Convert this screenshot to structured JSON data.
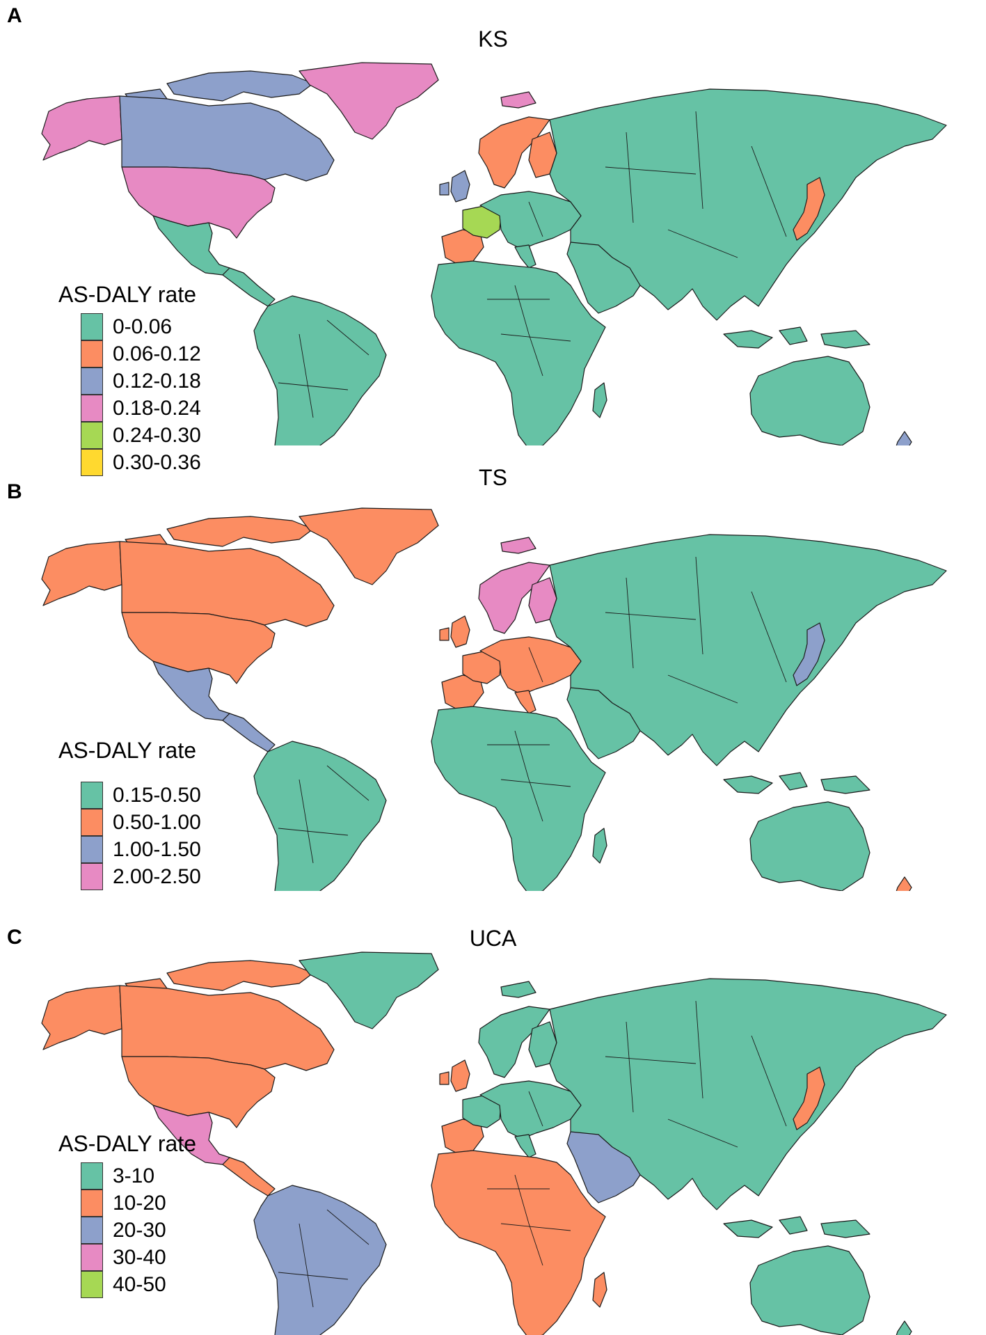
{
  "colors": {
    "teal": "#66c2a5",
    "orange": "#fc8d62",
    "blue": "#8da0cb",
    "pink": "#e78ac3",
    "green": "#a6d854",
    "yellow": "#ffd92f"
  },
  "panels": [
    {
      "letter": "A",
      "title": "KS",
      "legend_title": "AS-DALY rate",
      "legend": [
        {
          "label": "0-0.06",
          "color": "#66c2a5"
        },
        {
          "label": "0.06-0.12",
          "color": "#fc8d62"
        },
        {
          "label": "0.12-0.18",
          "color": "#8da0cb"
        },
        {
          "label": "0.18-0.24",
          "color": "#e78ac3"
        },
        {
          "label": "0.24-0.30",
          "color": "#a6d854"
        },
        {
          "label": "0.30-0.36",
          "color": "#ffd92f"
        }
      ],
      "regions": {
        "canada": "#8da0cb",
        "usa": "#e78ac3",
        "alaska": "#e78ac3",
        "greenland": "#e78ac3",
        "arctic": "#8da0cb",
        "mexico": "#66c2a5",
        "central_america": "#66c2a5",
        "south_america": "#66c2a5",
        "europe": "#66c2a5",
        "scandinavia": "#fc8d62",
        "france": "#a6d854",
        "iberia": "#fc8d62",
        "uk": "#8da0cb",
        "svalbard": "#e78ac3",
        "africa": "#66c2a5",
        "middle_east": "#66c2a5",
        "asia": "#66c2a5",
        "japan": "#fc8d62",
        "indonesia": "#66c2a5",
        "australia": "#66c2a5",
        "new_zealand": "#8da0cb",
        "madagascar": "#66c2a5"
      }
    },
    {
      "letter": "B",
      "title": "TS",
      "legend_title": "AS-DALY rate",
      "legend": [
        {
          "label": "0.15-0.50",
          "color": "#66c2a5"
        },
        {
          "label": "0.50-1.00",
          "color": "#fc8d62"
        },
        {
          "label": "1.00-1.50",
          "color": "#8da0cb"
        },
        {
          "label": "2.00-2.50",
          "color": "#e78ac3"
        }
      ],
      "regions": {
        "canada": "#fc8d62",
        "usa": "#fc8d62",
        "alaska": "#fc8d62",
        "greenland": "#fc8d62",
        "arctic": "#fc8d62",
        "mexico": "#8da0cb",
        "central_america": "#8da0cb",
        "south_america": "#66c2a5",
        "europe": "#fc8d62",
        "scandinavia": "#e78ac3",
        "france": "#fc8d62",
        "iberia": "#fc8d62",
        "uk": "#fc8d62",
        "svalbard": "#e78ac3",
        "africa": "#66c2a5",
        "middle_east": "#66c2a5",
        "asia": "#66c2a5",
        "japan": "#8da0cb",
        "indonesia": "#66c2a5",
        "australia": "#66c2a5",
        "new_zealand": "#fc8d62",
        "madagascar": "#66c2a5"
      }
    },
    {
      "letter": "C",
      "title": "UCA",
      "legend_title": "AS-DALY rate",
      "legend": [
        {
          "label": "3-10",
          "color": "#66c2a5"
        },
        {
          "label": "10-20",
          "color": "#fc8d62"
        },
        {
          "label": "20-30",
          "color": "#8da0cb"
        },
        {
          "label": "30-40",
          "color": "#e78ac3"
        },
        {
          "label": "40-50",
          "color": "#a6d854"
        }
      ],
      "regions": {
        "canada": "#fc8d62",
        "usa": "#fc8d62",
        "alaska": "#fc8d62",
        "greenland": "#66c2a5",
        "arctic": "#fc8d62",
        "mexico": "#e78ac3",
        "central_america": "#fc8d62",
        "south_america": "#8da0cb",
        "europe": "#66c2a5",
        "scandinavia": "#66c2a5",
        "france": "#66c2a5",
        "iberia": "#fc8d62",
        "uk": "#fc8d62",
        "svalbard": "#66c2a5",
        "africa": "#fc8d62",
        "middle_east": "#8da0cb",
        "asia": "#66c2a5",
        "japan": "#fc8d62",
        "indonesia": "#66c2a5",
        "australia": "#66c2a5",
        "new_zealand": "#66c2a5",
        "madagascar": "#fc8d62"
      }
    }
  ]
}
